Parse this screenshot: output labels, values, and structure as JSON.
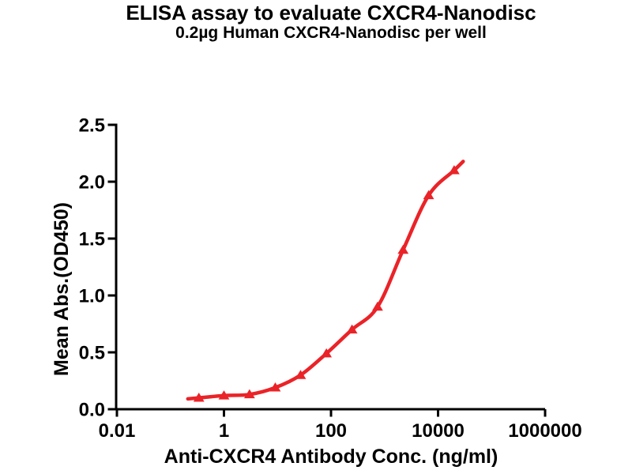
{
  "chart_data": {
    "type": "scatter",
    "title": "ELISA assay to evaluate CXCR4-Nanodisc",
    "subtitle": "0.2µg Human CXCR4-Nanodisc per well",
    "xlabel": "Anti-CXCR4 Antibody Conc. (ng/ml)",
    "ylabel": "Mean Abs.(OD450)",
    "x_scale": "log10",
    "xlim": [
      0.01,
      1000000
    ],
    "ylim": [
      0,
      2.5
    ],
    "x_tick_values": [
      0.01,
      1,
      100,
      10000,
      1000000
    ],
    "x_tick_labels": [
      "0.01",
      "1",
      "100",
      "10000",
      "1000000"
    ],
    "y_tick_values": [
      0.0,
      0.5,
      1.0,
      1.5,
      2.0,
      2.5
    ],
    "y_tick_labels": [
      "0.0",
      "0.5",
      "1.0",
      "1.5",
      "2.0",
      "2.5"
    ],
    "grid": false,
    "legend_position": "none",
    "series": [
      {
        "marker": "triangle-up",
        "color": "#EA2328",
        "line": "smooth-fit-curve",
        "x": [
          0.34,
          1.0,
          3.0,
          9.1,
          27,
          82,
          247,
          741,
          2222,
          6667,
          20000
        ],
        "y": [
          0.1,
          0.12,
          0.13,
          0.19,
          0.3,
          0.49,
          0.7,
          0.9,
          1.4,
          1.88,
          2.1
        ]
      }
    ]
  },
  "colors": {
    "accent": "#EA2328",
    "text": "#000000",
    "background": "#FFFFFF"
  }
}
